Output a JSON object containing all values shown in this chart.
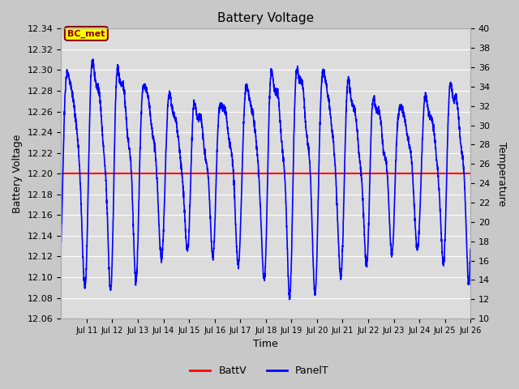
{
  "title": "Battery Voltage",
  "xlabel": "Time",
  "ylabel_left": "Battery Voltage",
  "ylabel_right": "Temperature",
  "ylim_left": [
    12.06,
    12.34
  ],
  "ylim_right": [
    10,
    40
  ],
  "battv_value": 12.2,
  "battv_color": "red",
  "panel_color": "blue",
  "bg_color": "#dcdcdc",
  "fig_bg": "#c8c8c8",
  "annotation_text": "BC_met",
  "annotation_bg": "#ffff00",
  "annotation_border": "#8b0000",
  "x_tick_labels": [
    "Jul 11",
    "Jul 12",
    "Jul 13",
    "Jul 14",
    "Jul 15",
    "Jul 16",
    "Jul 17",
    "Jul 18",
    "Jul 19",
    "Jul 20",
    "Jul 21",
    "Jul 22",
    "Jul 23",
    "Jul 24",
    "Jul 25",
    "Jul 26"
  ],
  "legend_labels": [
    "BattV",
    "PanelT"
  ],
  "legend_colors": [
    "red",
    "blue"
  ],
  "left_ticks": [
    12.06,
    12.08,
    12.1,
    12.12,
    12.14,
    12.16,
    12.18,
    12.2,
    12.22,
    12.24,
    12.26,
    12.28,
    12.3,
    12.32,
    12.34
  ],
  "right_ticks": [
    10,
    12,
    14,
    16,
    18,
    20,
    22,
    24,
    26,
    28,
    30,
    32,
    34,
    36,
    38,
    40
  ]
}
